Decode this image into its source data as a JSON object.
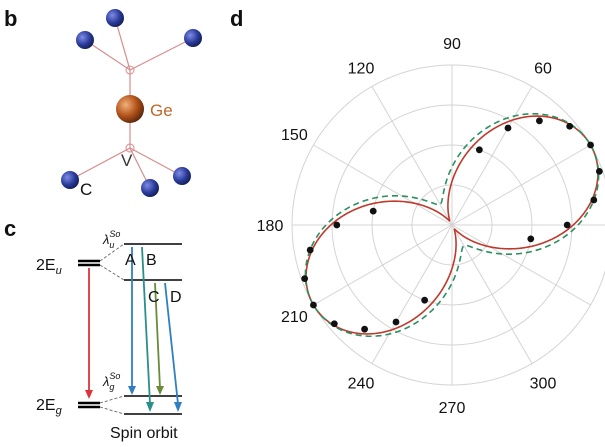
{
  "panels": {
    "b": "b",
    "c": "c",
    "d": "d"
  },
  "panel_b": {
    "ge_label": "Ge",
    "v_label": "V",
    "c_label": "C",
    "colors": {
      "carbon": "#2a3b9a",
      "germanium": "#b4561c",
      "bond": "#d98c8c",
      "ge_text": "#c0672a"
    }
  },
  "panel_c": {
    "upper_state": "2E",
    "upper_sub": "u",
    "lower_state": "2E",
    "lower_sub": "g",
    "lambda_u": "λ",
    "lambda_u_sub": "u",
    "lambda_u_sup": "So",
    "lambda_g": "λ",
    "lambda_g_sub": "g",
    "lambda_g_sup": "So",
    "transitions": [
      "A",
      "B",
      "C",
      "D"
    ],
    "caption": "Spin orbit",
    "colors": {
      "red": "#d9353b",
      "blue": "#2f7fc1",
      "green": "#6b8a3a",
      "teal": "#2a8f8a"
    }
  },
  "chart_data": {
    "type": "polar-scatter",
    "angle_ticks": [
      "90",
      "60",
      "120",
      "150",
      "180",
      "210",
      "240",
      "270",
      "300"
    ],
    "angle_tick_values": [
      90,
      60,
      120,
      150,
      180,
      210,
      240,
      270,
      300
    ],
    "series": [
      {
        "kind": "points",
        "color": "#000000",
        "points": [
          {
            "theta": 20,
            "r": 0.98
          },
          {
            "theta": 30,
            "r": 1.0
          },
          {
            "theta": 40,
            "r": 0.96
          },
          {
            "theta": 50,
            "r": 0.85
          },
          {
            "theta": 60,
            "r": 0.7
          },
          {
            "theta": 70,
            "r": 0.5
          },
          {
            "theta": 10,
            "r": 0.9
          },
          {
            "theta": 0,
            "r": 0.72
          },
          {
            "theta": -10,
            "r": 0.5
          },
          {
            "theta": 200,
            "r": 0.98
          },
          {
            "theta": 210,
            "r": 1.0
          },
          {
            "theta": 220,
            "r": 0.96
          },
          {
            "theta": 230,
            "r": 0.85
          },
          {
            "theta": 240,
            "r": 0.7
          },
          {
            "theta": 250,
            "r": 0.5
          },
          {
            "theta": 190,
            "r": 0.9
          },
          {
            "theta": 180,
            "r": 0.72
          },
          {
            "theta": 170,
            "r": 0.5
          }
        ]
      },
      {
        "kind": "fit",
        "color": "#c0392b",
        "style": "solid",
        "orientation_deg": 30,
        "contrast": 0.97
      },
      {
        "kind": "fit",
        "color": "#2a9060",
        "style": "dashed",
        "orientation_deg": 30,
        "contrast": 0.85
      }
    ]
  }
}
